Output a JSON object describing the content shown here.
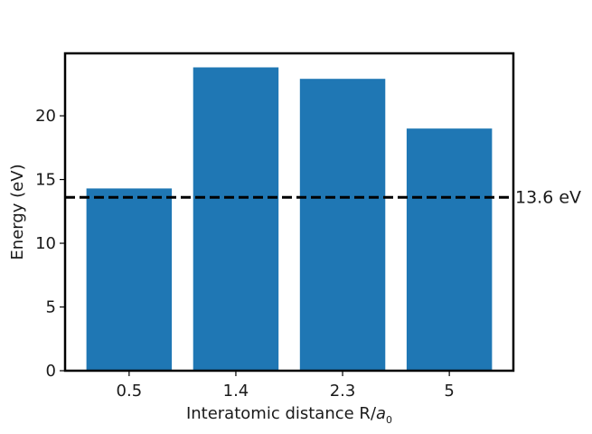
{
  "chart_data": {
    "type": "bar",
    "title": "",
    "categories": [
      "0.5",
      "1.4",
      "2.3",
      "5"
    ],
    "values": [
      14.3,
      23.8,
      22.9,
      19.0
    ],
    "xlabel_main": "Interatomic distance R/",
    "xlabel_sub_base": "a",
    "xlabel_sub_index": "0",
    "ylabel": "Energy (eV)",
    "ylim": [
      0,
      24.9
    ],
    "yticks": [
      0,
      5,
      10,
      15,
      20
    ],
    "grid": false,
    "bar_color": "#1f77b4",
    "reference_line": {
      "value": 13.6,
      "label": "13.6 eV",
      "style": "dashed",
      "color": "#000000"
    }
  }
}
